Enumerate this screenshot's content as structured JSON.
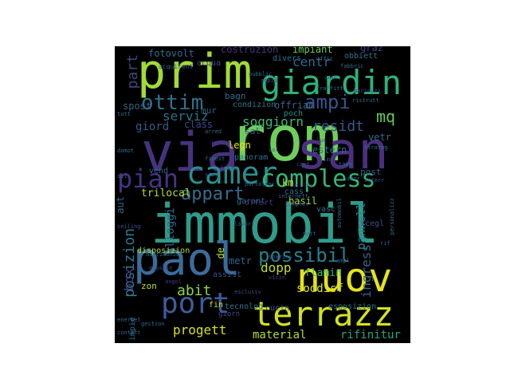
{
  "words": [
    {
      "text": "immobil",
      "color": "#2f9c8a",
      "weight": 1.0
    },
    {
      "text": "rom",
      "color": "#6fce5a",
      "weight": 0.92
    },
    {
      "text": "via",
      "color": "#46337e",
      "weight": 0.86
    },
    {
      "text": "san",
      "color": "#4b2f7f",
      "weight": 0.8
    },
    {
      "text": "prim",
      "color": "#a2db34",
      "weight": 0.7
    },
    {
      "text": "paol",
      "color": "#3b6c9a",
      "weight": 0.7
    },
    {
      "text": "nuov",
      "color": "#e5e419",
      "weight": 0.62
    },
    {
      "text": "giardin",
      "color": "#2eb27c",
      "weight": 0.55
    },
    {
      "text": "terrazz",
      "color": "#d2e21b",
      "weight": 0.52
    },
    {
      "text": "camer",
      "color": "#2a8f8c",
      "weight": 0.5
    },
    {
      "text": "port",
      "color": "#3e5c9b",
      "weight": 0.44
    },
    {
      "text": "compless",
      "color": "#32b67a",
      "weight": 0.4
    },
    {
      "text": "pian",
      "color": "#453480",
      "weight": 0.38
    },
    {
      "text": "ottim",
      "color": "#2d718e",
      "weight": 0.33
    },
    {
      "text": "possibil",
      "color": "#26818e",
      "weight": 0.32
    },
    {
      "text": "ampi",
      "color": "#3b528b",
      "weight": 0.3
    },
    {
      "text": "mq",
      "color": "#5fc961",
      "weight": 0.28
    },
    {
      "text": "appart",
      "color": "#356e8f",
      "weight": 0.28
    },
    {
      "text": "residt",
      "color": "#36588c",
      "weight": 0.24
    },
    {
      "text": "soggiorn",
      "color": "#38b977",
      "weight": 0.22
    },
    {
      "text": "part",
      "color": "#41447e",
      "weight": 0.22
    },
    {
      "text": "posizion",
      "color": "#2b7c8e",
      "weight": 0.22
    },
    {
      "text": "abit",
      "color": "#8fd744",
      "weight": 0.2
    },
    {
      "text": "serviz",
      "color": "#2c728e",
      "weight": 0.2
    },
    {
      "text": "dopp",
      "color": "#c0df25",
      "weight": 0.2
    },
    {
      "text": "box",
      "color": "#433d84",
      "weight": 0.2
    },
    {
      "text": "centr",
      "color": "#31678e",
      "weight": 0.18
    },
    {
      "text": "progett",
      "color": "#d8e219",
      "weight": 0.18
    },
    {
      "text": "giord",
      "color": "#38598c",
      "weight": 0.17
    },
    {
      "text": "alloggi",
      "color": "#2f6c8e",
      "weight": 0.17
    },
    {
      "text": "ingress",
      "color": "#33638d",
      "weight": 0.17
    },
    {
      "text": "fotovolt",
      "color": "#2e6e8e",
      "weight": 0.14
    },
    {
      "text": "costruzion",
      "color": "#4a357d",
      "weight": 0.14
    },
    {
      "text": "impiant",
      "color": "#6ccd5a",
      "weight": 0.14
    },
    {
      "text": "offriam",
      "color": "#34618d",
      "weight": 0.14
    },
    {
      "text": "trilocal",
      "color": "#b4de2c",
      "weight": 0.14
    },
    {
      "text": "basil",
      "color": "#a5db36",
      "weight": 0.14
    },
    {
      "text": "pannell",
      "color": "#24868e",
      "weight": 0.14
    },
    {
      "text": "material",
      "color": "#b2dd2d",
      "weight": 0.14
    },
    {
      "text": "rifinitur",
      "color": "#21a685",
      "weight": 0.14
    },
    {
      "text": "soddisf",
      "color": "#d5e21a",
      "weight": 0.13
    },
    {
      "text": "flamin",
      "color": "#31b57b",
      "weight": 0.13
    },
    {
      "text": "class",
      "color": "#3f4a8a",
      "weight": 0.13
    },
    {
      "text": "spost",
      "color": "#33628d",
      "weight": 0.13
    },
    {
      "text": "estern",
      "color": "#2c738e",
      "weight": 0.12
    },
    {
      "text": "vetr",
      "color": "#2f6b8e",
      "weight": 0.12
    },
    {
      "text": "legn",
      "color": "#e7e419",
      "weight": 0.12
    },
    {
      "text": "km",
      "color": "#c8e020",
      "weight": 0.12
    },
    {
      "text": "metr",
      "color": "#33638d",
      "weight": 0.12
    },
    {
      "text": "graz",
      "color": "#42448a",
      "weight": 0.12
    },
    {
      "text": "obbiett",
      "color": "#2a768e",
      "weight": 0.1
    },
    {
      "text": "divers",
      "color": "#2c728e",
      "weight": 0.1
    },
    {
      "text": "acqua",
      "color": "#3e4c8a",
      "weight": 0.1
    },
    {
      "text": "mur",
      "color": "#33638d",
      "weight": 0.11
    },
    {
      "text": "bagn",
      "color": "#2f6b8e",
      "weight": 0.11
    },
    {
      "text": "condizion",
      "color": "#2a788e",
      "weight": 0.1
    },
    {
      "text": "poch",
      "color": "#21918c",
      "weight": 0.11
    },
    {
      "text": "sal",
      "color": "#3b528b",
      "weight": 0.11
    },
    {
      "text": "panoram",
      "color": "#2c728e",
      "weight": 0.1
    },
    {
      "text": "post",
      "color": "#35608d",
      "weight": 0.11
    },
    {
      "text": "cass",
      "color": "#2e6f8e",
      "weight": 0.11
    },
    {
      "text": "garant",
      "color": "#31688e",
      "weight": 0.1
    },
    {
      "text": "offert",
      "color": "#443a83",
      "weight": 0.1
    },
    {
      "text": "vasc",
      "color": "#2b758e",
      "weight": 0.1
    },
    {
      "text": "scegl",
      "color": "#3d4e8a",
      "weight": 0.1
    },
    {
      "text": "vend",
      "color": "#31678e",
      "weight": 0.1
    },
    {
      "text": "disposizion",
      "color": "#b5de2b",
      "weight": 0.1
    },
    {
      "text": "assist",
      "color": "#3b528b",
      "weight": 0.1
    },
    {
      "text": "zon",
      "color": "#c2df23",
      "weight": 0.11
    },
    {
      "text": "fin",
      "color": "#d0e11c",
      "weight": 0.1
    },
    {
      "text": "tecnolog",
      "color": "#2a778e",
      "weight": 0.1
    },
    {
      "text": "cucin",
      "color": "#34618d",
      "weight": 0.1
    },
    {
      "text": "esposizion",
      "color": "#2b758e",
      "weight": 0.1
    },
    {
      "text": "giorn",
      "color": "#3e4989",
      "weight": 0.09
    },
    {
      "text": "impie",
      "color": "#2e6d8e",
      "weight": 0.1
    },
    {
      "text": "de",
      "color": "#c0df25",
      "weight": 0.12
    },
    {
      "text": "aut",
      "color": "#2f6c8e",
      "weight": 0.12
    },
    {
      "text": "acquirent",
      "color": "#35608d",
      "weight": 0.08
    },
    {
      "text": "villin",
      "color": "#482777",
      "weight": 0.07
    },
    {
      "text": "fraffitt",
      "color": "#2c738e",
      "weight": 0.07
    },
    {
      "text": "marinuzz",
      "color": "#3e4989",
      "weight": 0.07
    },
    {
      "text": "portalogi",
      "color": "#32658e",
      "weight": 0.07
    },
    {
      "text": "internett",
      "color": "#2e6d8e",
      "weight": 0.07
    },
    {
      "text": "complet",
      "color": "#38598c",
      "weight": 0.07
    },
    {
      "text": "matrimonial",
      "color": "#2f6c8e",
      "weight": 0.07
    },
    {
      "text": "esclusiv",
      "color": "#3d4d8a",
      "weight": 0.07
    },
    {
      "text": "personalizz",
      "color": "#2e6e8e",
      "weight": 0.07
    },
    {
      "text": "automobil",
      "color": "#2d718e",
      "weight": 0.06
    },
    {
      "text": "vicin",
      "color": "#414487",
      "weight": 0.06
    },
    {
      "text": "spazios",
      "color": "#3a548c",
      "weight": 0.06
    },
    {
      "text": "strateg",
      "color": "#2b748e",
      "weight": 0.06
    },
    {
      "text": "ristrutt",
      "color": "#2c728e",
      "weight": 0.06
    },
    {
      "text": "energet",
      "color": "#31688e",
      "weight": 0.06
    },
    {
      "text": "gestion",
      "color": "#2f6b8e",
      "weight": 0.06
    },
    {
      "text": "uffic",
      "color": "#2e6f8e",
      "weight": 0.06
    },
    {
      "text": "angol",
      "color": "#443983",
      "weight": 0.06
    },
    {
      "text": "contatt",
      "color": "#32648e",
      "weight": 0.06
    },
    {
      "text": "ceiling",
      "color": "#3b528b",
      "weight": 0.06
    },
    {
      "text": "domot",
      "color": "#2d708e",
      "weight": 0.06
    },
    {
      "text": "taga",
      "color": "#2f6b8e",
      "weight": 0.06
    },
    {
      "text": "interr",
      "color": "#345f8d",
      "weight": 0.06
    },
    {
      "text": "lavori",
      "color": "#38598c",
      "weight": 0.06
    },
    {
      "text": "sit",
      "color": "#2e6e8e",
      "weight": 0.06
    },
    {
      "text": "rif",
      "color": "#33638d",
      "weight": 0.06
    },
    {
      "text": "giustin",
      "color": "#3c4f8a",
      "weight": 0.06
    },
    {
      "text": "fabbric",
      "color": "#2e6d8e",
      "weight": 0.05
    },
    {
      "text": "unic",
      "color": "#33638d",
      "weight": 0.05
    },
    {
      "text": "pubblic",
      "color": "#2e6e8e",
      "weight": 0.05
    },
    {
      "text": "clima",
      "color": "#3f4888",
      "weight": 0.05
    },
    {
      "text": "finest",
      "color": "#2f6b8e",
      "weight": 0.05
    },
    {
      "text": "stat",
      "color": "#39568c",
      "weight": 0.05
    },
    {
      "text": "serr",
      "color": "#2e6d8e",
      "weight": 0.05
    },
    {
      "text": "lusso",
      "color": "#33628d",
      "weight": 0.05
    },
    {
      "text": "sol",
      "color": "#2f6b8e",
      "weight": 0.05
    },
    {
      "text": "cant",
      "color": "#3e4c8a",
      "weight": 0.05
    },
    {
      "text": "ampl",
      "color": "#31678e",
      "weight": 0.05
    },
    {
      "text": "tutt",
      "color": "#2b758e",
      "weight": 0.05
    },
    {
      "text": "ampio",
      "color": "#3b528b",
      "weight": 0.05
    },
    {
      "text": "nott",
      "color": "#32648e",
      "weight": 0.05
    },
    {
      "text": "arred",
      "color": "#2e6e8e",
      "weight": 0.05
    },
    {
      "text": "luc",
      "color": "#3f4889",
      "weight": 0.05
    },
    {
      "text": "tran",
      "color": "#2d708e",
      "weight": 0.05
    },
    {
      "text": "quart",
      "color": "#33638d",
      "weight": 0.05
    }
  ]
}
